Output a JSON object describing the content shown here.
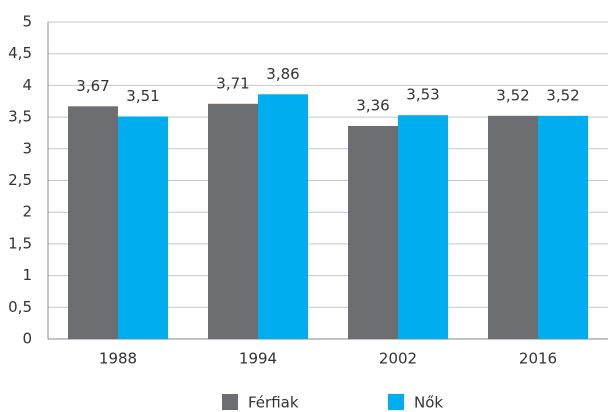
{
  "chart_data": {
    "type": "bar",
    "categories": [
      "1988",
      "1994",
      "2002",
      "2016"
    ],
    "series": [
      {
        "name": "Férfiak",
        "color": "#6d6e71",
        "values": [
          3.67,
          3.71,
          3.36,
          3.52
        ],
        "value_labels": [
          "3,67",
          "3,71",
          "3,36",
          "3,52"
        ]
      },
      {
        "name": "Nők",
        "color": "#00aeef",
        "values": [
          3.51,
          3.86,
          3.53,
          3.52
        ],
        "value_labels": [
          "3,51",
          "3,86",
          "3,53",
          "3,52"
        ]
      }
    ],
    "ylim": [
      0,
      5
    ],
    "yticks": [
      0,
      {
        "value": 0.5,
        "label": "0,5"
      },
      1,
      {
        "value": 1.5,
        "label": "1,5"
      },
      2,
      {
        "value": 2.5,
        "label": "2,5"
      },
      3,
      {
        "value": 3.5,
        "label": "3,5"
      },
      4,
      {
        "value": 4.5,
        "label": "4,5"
      },
      5
    ],
    "grid": true
  }
}
